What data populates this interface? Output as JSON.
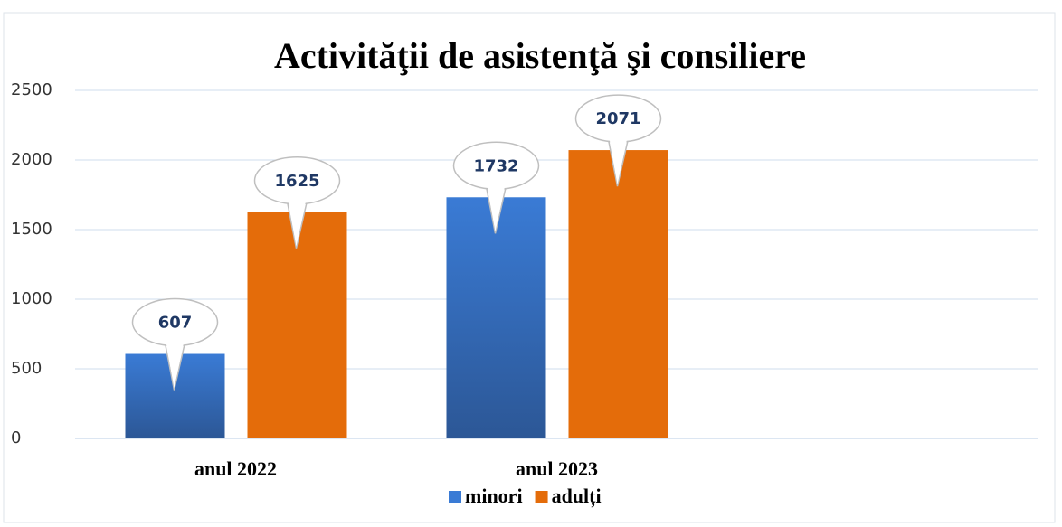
{
  "chart_data": {
    "type": "bar",
    "title": "Activităţii de asistenţă şi consiliere",
    "categories": [
      "anul 2022",
      "anul 2023",
      null
    ],
    "series": [
      {
        "name": "minori",
        "color": "#3a7bd5",
        "values": [
          607,
          1732,
          null
        ]
      },
      {
        "name": "adulți",
        "color": "#e46c0a",
        "values": [
          1625,
          2071,
          null
        ]
      }
    ],
    "ylim": [
      0,
      2500
    ],
    "yticks": [
      0,
      500,
      1000,
      1500,
      2000,
      2500
    ],
    "grid": true,
    "legend": "bottom"
  }
}
